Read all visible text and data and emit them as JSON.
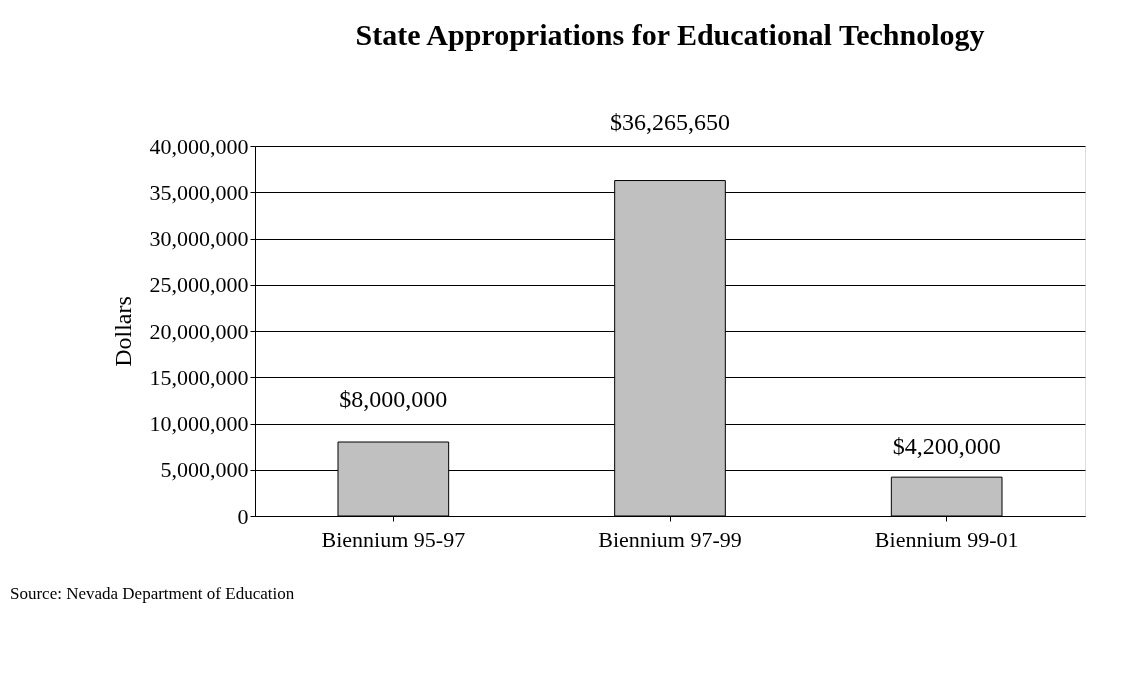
{
  "chart_data": {
    "type": "bar",
    "title": "State Appropriations for Educational Technology",
    "ylabel": "Dollars",
    "categories": [
      "Biennium 95-97",
      "Biennium 97-99",
      "Biennium 99-01"
    ],
    "values": [
      8000000,
      36265650,
      4200000
    ],
    "value_labels": [
      "$8,000,000",
      "$36,265,650",
      "$4,200,000"
    ],
    "color": "#c0c0c0",
    "ylim": [
      0,
      40000000
    ],
    "yticks": [
      0,
      {
        "value": 5000000,
        "label": "5,000,000"
      },
      {
        "value": 10000000,
        "label": "10,000,000"
      },
      {
        "value": 15000000,
        "label": "15,000,000"
      },
      {
        "value": 20000000,
        "label": "20,000,000"
      },
      {
        "value": 25000000,
        "label": "25,000,000"
      },
      {
        "value": 30000000,
        "label": "30,000,000"
      },
      {
        "value": 35000000,
        "label": "35,000,000"
      },
      {
        "value": 40000000,
        "label": "40,000,000"
      }
    ],
    "grid": "y",
    "annotations": [
      "Source: Nevada Department of Education"
    ]
  }
}
